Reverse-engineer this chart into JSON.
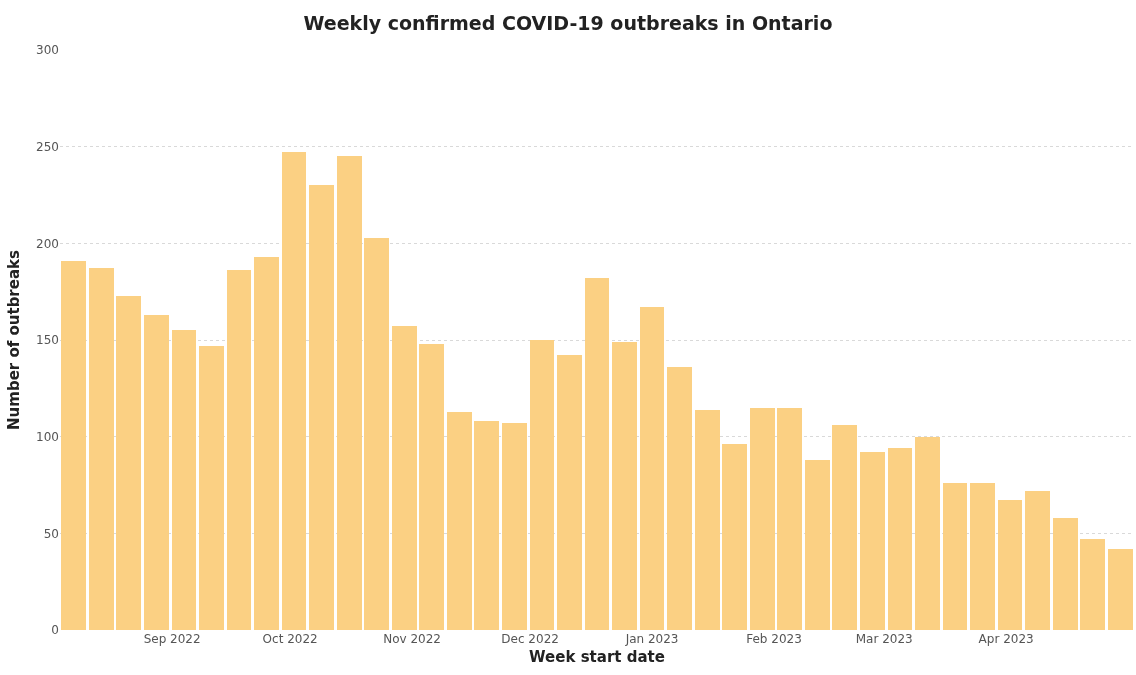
{
  "chart_data": {
    "type": "bar",
    "title": "Weekly confirmed COVID-19 outbreaks in Ontario",
    "xlabel": "Week start date",
    "ylabel": "Number of outbreaks",
    "x": [
      "2022-08-07",
      "2022-08-14",
      "2022-08-21",
      "2022-08-28",
      "2022-09-04",
      "2022-09-11",
      "2022-09-18",
      "2022-09-25",
      "2022-10-02",
      "2022-10-09",
      "2022-10-16",
      "2022-10-23",
      "2022-10-30",
      "2022-11-06",
      "2022-11-13",
      "2022-11-20",
      "2022-11-27",
      "2022-12-04",
      "2022-12-11",
      "2022-12-18",
      "2022-12-25",
      "2023-01-01",
      "2023-01-08",
      "2023-01-15",
      "2023-01-22",
      "2023-01-29",
      "2023-02-05",
      "2023-02-12",
      "2023-02-19",
      "2023-02-26",
      "2023-03-05",
      "2023-03-12",
      "2023-03-19",
      "2023-03-26",
      "2023-04-02",
      "2023-04-09",
      "2023-04-16",
      "2023-04-23",
      "2023-04-30"
    ],
    "values": [
      191,
      187,
      173,
      163,
      155,
      147,
      186,
      193,
      247,
      230,
      245,
      203,
      157,
      148,
      113,
      108,
      107,
      150,
      142,
      182,
      149,
      167,
      136,
      114,
      96,
      115,
      115,
      88,
      106,
      92,
      94,
      100,
      76,
      76,
      67,
      72,
      58,
      47,
      42
    ],
    "color": "#fbd083",
    "xlim": [
      "2022-08-03T12:00",
      "2023-05-03T12:00"
    ],
    "xticks": [
      {
        "value": "2022-09-01",
        "label": "Sep 2022"
      },
      {
        "value": "2022-10-01",
        "label": "Oct 2022"
      },
      {
        "value": "2022-11-01",
        "label": "Nov 2022"
      },
      {
        "value": "2022-12-01",
        "label": "Dec 2022"
      },
      {
        "value": "2023-01-01",
        "label": "Jan 2023"
      },
      {
        "value": "2023-02-01",
        "label": "Feb 2023"
      },
      {
        "value": "2023-03-01",
        "label": "Mar 2023"
      },
      {
        "value": "2023-04-01",
        "label": "Apr 2023"
      }
    ],
    "ylim": [
      0,
      300
    ],
    "yticks": [
      0,
      50,
      100,
      150,
      200,
      250,
      300
    ],
    "grid": "y"
  }
}
